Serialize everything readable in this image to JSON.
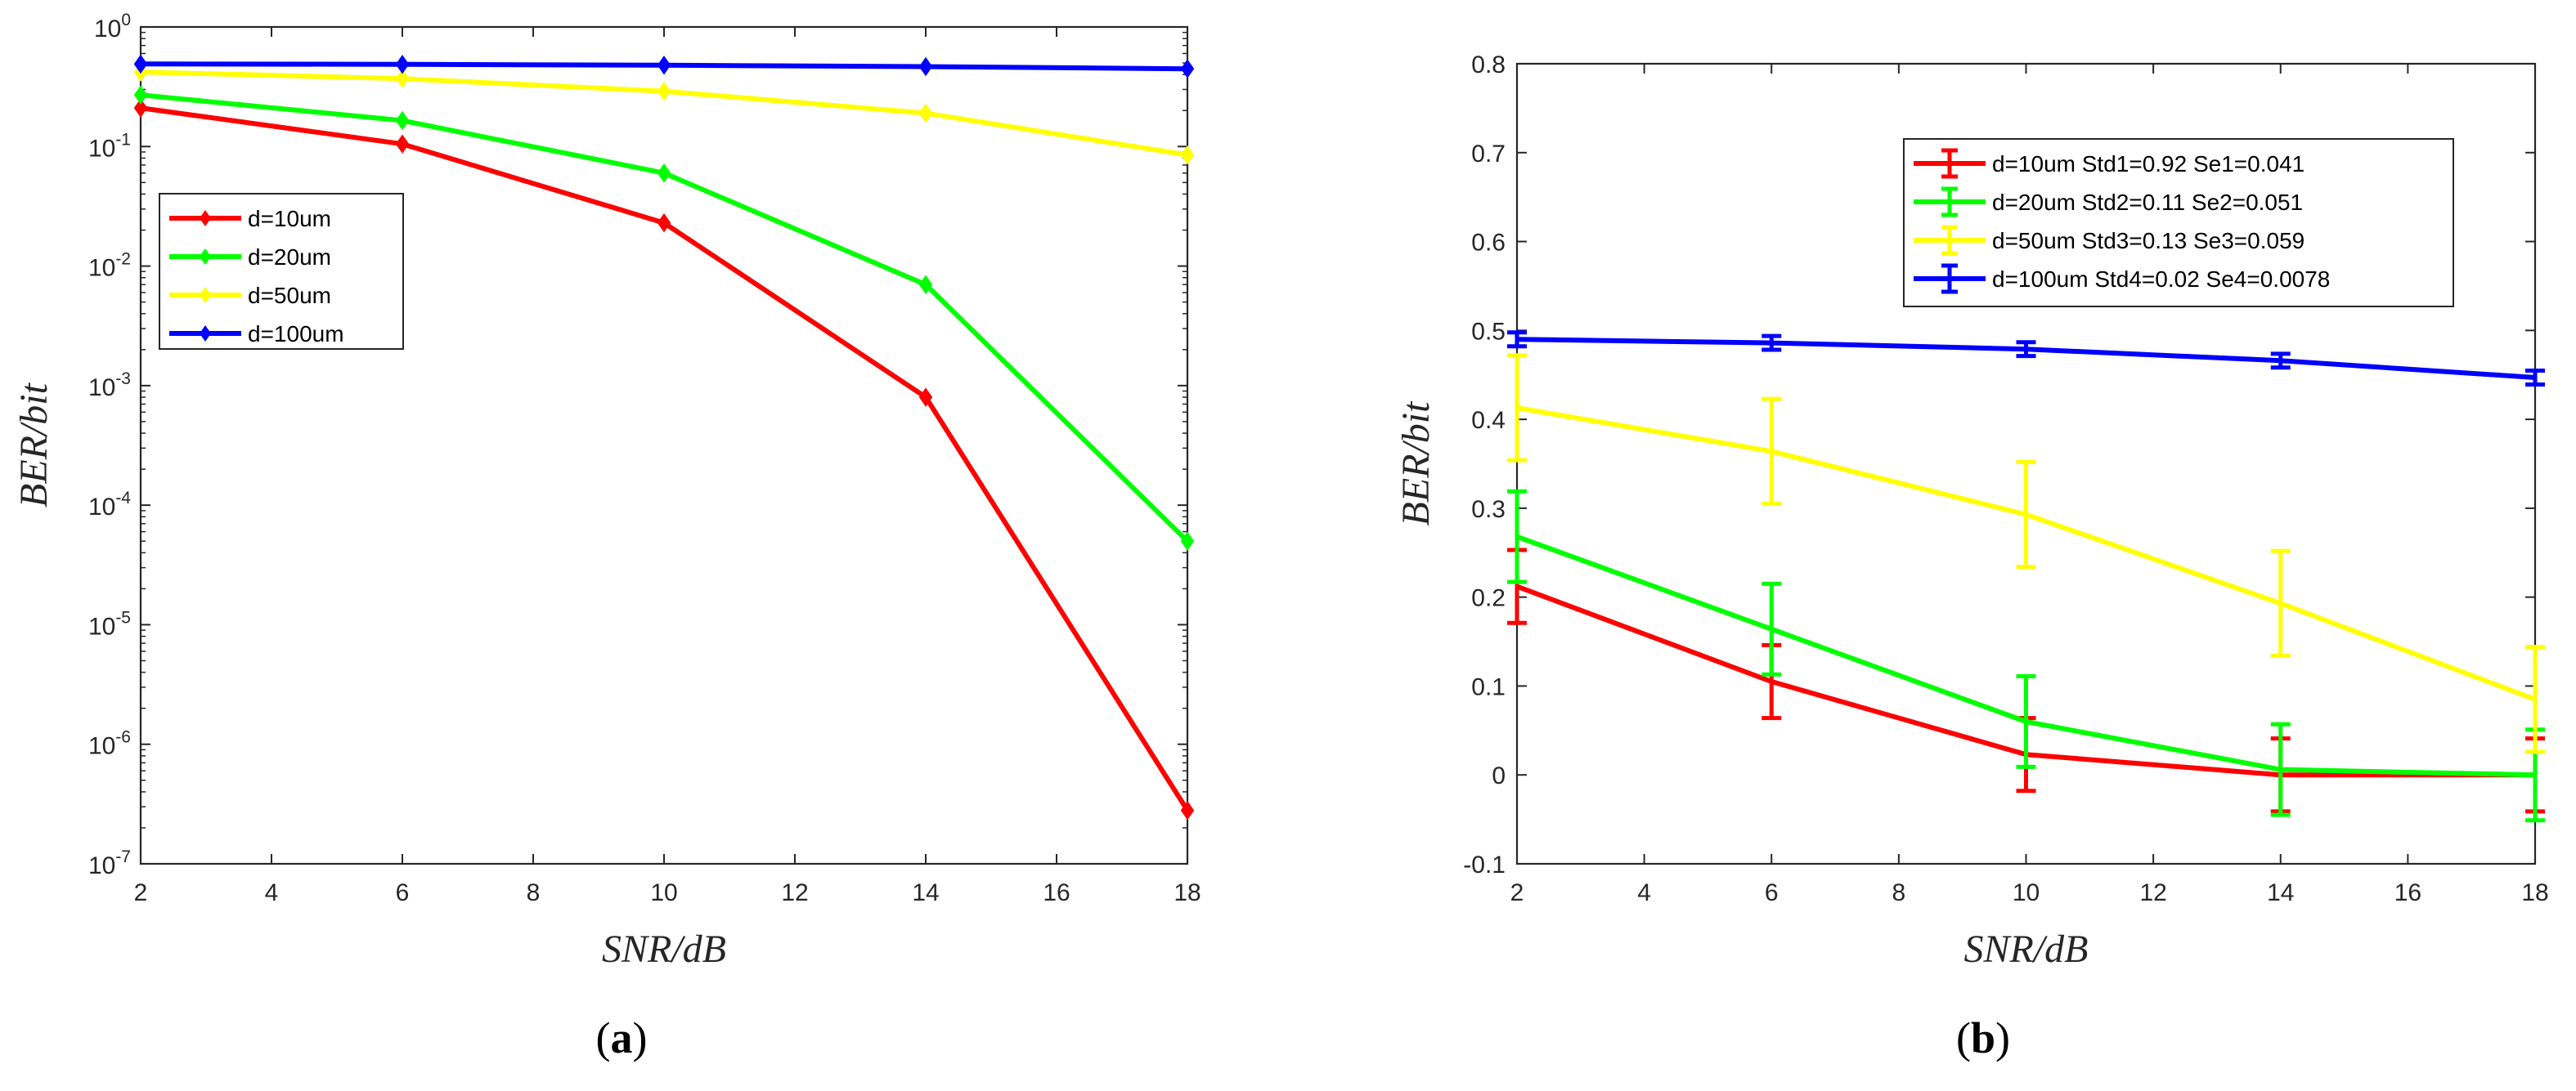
{
  "chart_data": [
    {
      "type": "line",
      "panel": "a",
      "panel_label_open": "(",
      "panel_label_letter": "a",
      "panel_label_close": ")",
      "xlabel": "SNR/dB",
      "ylabel": "BER/bit",
      "yscale": "log",
      "xlim": [
        2,
        18
      ],
      "ylim_exponent": [
        -7,
        0
      ],
      "x_ticks": [
        "2",
        "4",
        "6",
        "8",
        "10",
        "12",
        "14",
        "16",
        "18"
      ],
      "y_tick_base": "10",
      "y_tick_exponents": [
        "-7",
        "-6",
        "-5",
        "-4",
        "-3",
        "-2",
        "-1",
        "0"
      ],
      "legend_position": "upper-left",
      "x": [
        2,
        6,
        10,
        14,
        18
      ],
      "series": [
        {
          "name": "d=10um",
          "color": "#ff0000",
          "values": [
            0.21,
            0.105,
            0.023,
            0.0008,
            2.8e-07
          ]
        },
        {
          "name": "d=20um",
          "color": "#00ff00",
          "values": [
            0.27,
            0.165,
            0.06,
            0.007,
            5e-05
          ]
        },
        {
          "name": "d=50um",
          "color": "#ffff00",
          "values": [
            0.42,
            0.37,
            0.29,
            0.19,
            0.085
          ]
        },
        {
          "name": "d=100um",
          "color": "#0000ff",
          "values": [
            0.49,
            0.487,
            0.479,
            0.466,
            0.447
          ]
        }
      ]
    },
    {
      "type": "line",
      "panel": "b",
      "panel_label_open": "(",
      "panel_label_letter": "b",
      "panel_label_close": ")",
      "xlabel": "SNR/dB",
      "ylabel": "BER/bit",
      "yscale": "linear",
      "xlim": [
        2,
        18
      ],
      "ylim": [
        -0.1,
        0.8
      ],
      "x_ticks": [
        "2",
        "4",
        "6",
        "8",
        "10",
        "12",
        "14",
        "16",
        "18"
      ],
      "y_ticks": [
        "-0.1",
        "0",
        "0.1",
        "0.2",
        "0.3",
        "0.4",
        "0.5",
        "0.6",
        "0.7",
        "0.8"
      ],
      "legend_position": "upper-right",
      "error_bars": true,
      "x": [
        2,
        6,
        10,
        14,
        18
      ],
      "series": [
        {
          "name": "d=10um Std1=0.92 Se1=0.041",
          "color": "#ff0000",
          "values": [
            0.212,
            0.105,
            0.023,
            0.0,
            0.0
          ],
          "err": [
            0.041,
            0.041,
            0.041,
            0.041,
            0.041
          ]
        },
        {
          "name": "d=20um Std2=0.11 Se2=0.051",
          "color": "#00ff00",
          "values": [
            0.268,
            0.164,
            0.06,
            0.006,
            0.0
          ],
          "err": [
            0.051,
            0.051,
            0.051,
            0.051,
            0.051
          ]
        },
        {
          "name": "d=50um Std3=0.13 Se3=0.059",
          "color": "#ffff00",
          "values": [
            0.413,
            0.364,
            0.293,
            0.193,
            0.085
          ],
          "err": [
            0.059,
            0.059,
            0.059,
            0.059,
            0.059
          ]
        },
        {
          "name": "d=100um Std4=0.02 Se4=0.0078",
          "color": "#0000ff",
          "values": [
            0.49,
            0.486,
            0.479,
            0.466,
            0.447
          ],
          "err": [
            0.0078,
            0.0078,
            0.0078,
            0.0078,
            0.0078
          ]
        }
      ]
    }
  ]
}
